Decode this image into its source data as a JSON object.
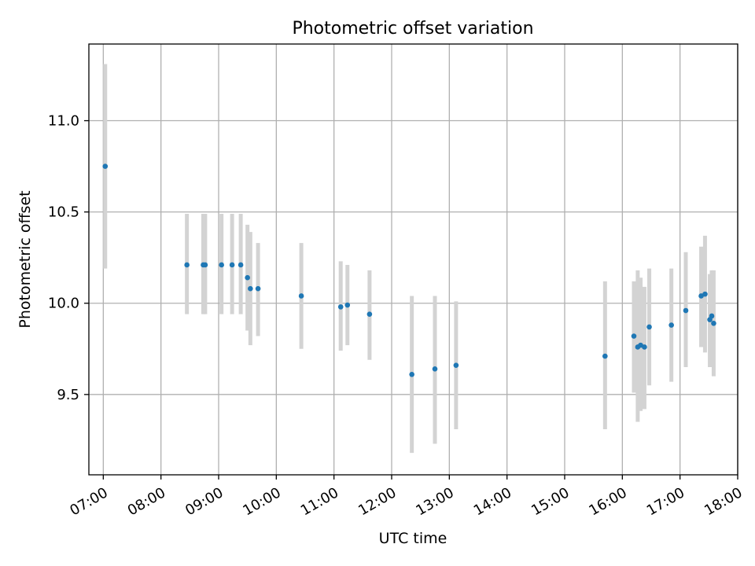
{
  "chart_data": {
    "type": "scatter",
    "title": "Photometric offset variation",
    "xlabel": "UTC time",
    "ylabel": "Photometric offset",
    "xlim": [
      "06:45",
      "18:00"
    ],
    "ylim": [
      9.06,
      11.42
    ],
    "grid": true,
    "colors": {
      "marker": "#1f77b4",
      "errorbar": "#d3d3d3"
    },
    "x_ticks": [
      "07:00",
      "08:00",
      "09:00",
      "10:00",
      "11:00",
      "12:00",
      "13:00",
      "14:00",
      "15:00",
      "16:00",
      "17:00",
      "18:00"
    ],
    "y_ticks": [
      {
        "value": 9.5,
        "label": "9.5"
      },
      {
        "value": 10.0,
        "label": "10.0"
      },
      {
        "value": 10.5,
        "label": "10.5"
      },
      {
        "value": 11.0,
        "label": "11.0"
      }
    ],
    "points": [
      {
        "time": "07:02",
        "y": 10.75,
        "err_low": 10.19,
        "err_high": 11.31
      },
      {
        "time": "08:27",
        "y": 10.21,
        "err_low": 9.94,
        "err_high": 10.49
      },
      {
        "time": "08:44",
        "y": 10.21,
        "err_low": 9.94,
        "err_high": 10.49
      },
      {
        "time": "08:46",
        "y": 10.21,
        "err_low": 9.94,
        "err_high": 10.49
      },
      {
        "time": "09:03",
        "y": 10.21,
        "err_low": 9.94,
        "err_high": 10.49
      },
      {
        "time": "09:14",
        "y": 10.21,
        "err_low": 9.94,
        "err_high": 10.49
      },
      {
        "time": "09:23",
        "y": 10.21,
        "err_low": 9.94,
        "err_high": 10.49
      },
      {
        "time": "09:30",
        "y": 10.14,
        "err_low": 9.85,
        "err_high": 10.43
      },
      {
        "time": "09:33",
        "y": 10.08,
        "err_low": 9.77,
        "err_high": 10.39
      },
      {
        "time": "09:41",
        "y": 10.08,
        "err_low": 9.82,
        "err_high": 10.33
      },
      {
        "time": "10:26",
        "y": 10.04,
        "err_low": 9.75,
        "err_high": 10.33
      },
      {
        "time": "11:07",
        "y": 9.98,
        "err_low": 9.74,
        "err_high": 10.23
      },
      {
        "time": "11:14",
        "y": 9.99,
        "err_low": 9.77,
        "err_high": 10.21
      },
      {
        "time": "11:37",
        "y": 9.94,
        "err_low": 9.69,
        "err_high": 10.18
      },
      {
        "time": "12:21",
        "y": 9.61,
        "err_low": 9.18,
        "err_high": 10.04
      },
      {
        "time": "12:45",
        "y": 9.64,
        "err_low": 9.23,
        "err_high": 10.04
      },
      {
        "time": "13:07",
        "y": 9.66,
        "err_low": 9.31,
        "err_high": 10.01
      },
      {
        "time": "15:42",
        "y": 9.71,
        "err_low": 9.31,
        "err_high": 10.12
      },
      {
        "time": "16:12",
        "y": 9.82,
        "err_low": 9.51,
        "err_high": 10.12
      },
      {
        "time": "16:16",
        "y": 9.76,
        "err_low": 9.35,
        "err_high": 10.18
      },
      {
        "time": "16:19",
        "y": 9.77,
        "err_low": 9.41,
        "err_high": 10.14
      },
      {
        "time": "16:23",
        "y": 9.76,
        "err_low": 9.42,
        "err_high": 10.09
      },
      {
        "time": "16:28",
        "y": 9.87,
        "err_low": 9.55,
        "err_high": 10.19
      },
      {
        "time": "16:51",
        "y": 9.88,
        "err_low": 9.57,
        "err_high": 10.19
      },
      {
        "time": "17:06",
        "y": 9.96,
        "err_low": 9.65,
        "err_high": 10.28
      },
      {
        "time": "17:22",
        "y": 10.04,
        "err_low": 9.76,
        "err_high": 10.31
      },
      {
        "time": "17:26",
        "y": 10.05,
        "err_low": 9.73,
        "err_high": 10.37
      },
      {
        "time": "17:31",
        "y": 9.91,
        "err_low": 9.65,
        "err_high": 10.16
      },
      {
        "time": "17:33",
        "y": 9.93,
        "err_low": 9.68,
        "err_high": 10.18
      },
      {
        "time": "17:35",
        "y": 9.89,
        "err_low": 9.6,
        "err_high": 10.18
      }
    ]
  }
}
